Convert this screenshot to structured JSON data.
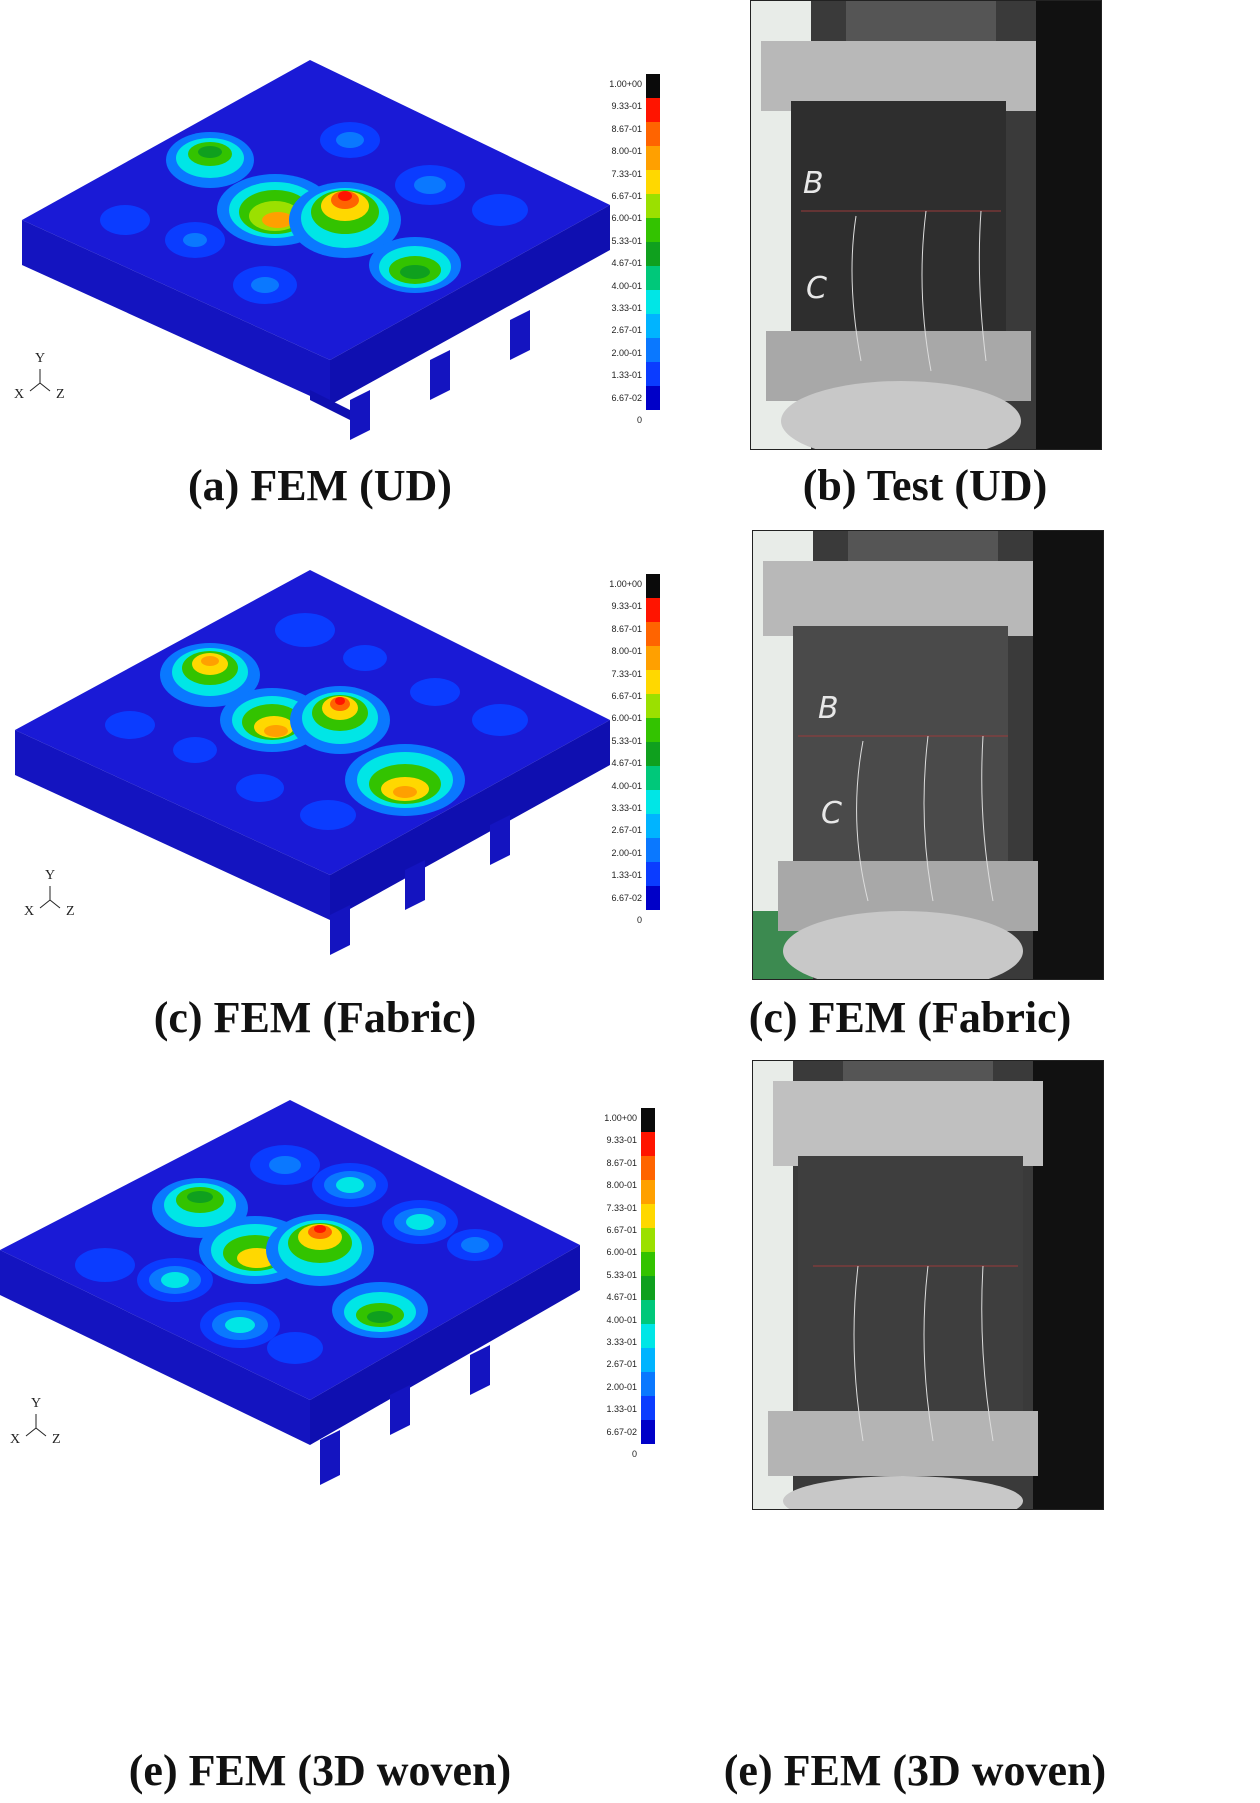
{
  "colors": {
    "fem_blue": "#1a1ad6",
    "contour": [
      "#0000c8",
      "#0b3cff",
      "#0a78ff",
      "#00b4ff",
      "#00e6e6",
      "#00c87a",
      "#0fa01e",
      "#33c300",
      "#9be000",
      "#ffd800",
      "#ffa000",
      "#ff6400",
      "#ff1400",
      "#0a0a0a"
    ]
  },
  "scale_labels": [
    "1.00+00",
    "9.33-01",
    "8.67-01",
    "8.00-01",
    "7.33-01",
    "6.67-01",
    "6.00-01",
    "5.33-01",
    "4.67-01",
    "4.00-01",
    "3.33-01",
    "2.67-01",
    "2.00-01",
    "1.33-01",
    "6.67-02",
    "0"
  ],
  "axes": {
    "y": "Y",
    "x": "X",
    "z": "Z"
  },
  "rows": [
    {
      "fem_caption": "(a) FEM (UD)",
      "photo_caption": "(b) Test (UD)",
      "photo_marks": [
        "B",
        "C"
      ]
    },
    {
      "fem_caption": "(c) FEM (Fabric)",
      "photo_caption": "(c) FEM (Fabric)",
      "photo_marks": [
        "B",
        "C"
      ]
    },
    {
      "fem_caption": "(e) FEM (3D woven)",
      "photo_caption": "(e) FEM (3D woven)",
      "photo_marks": []
    }
  ]
}
